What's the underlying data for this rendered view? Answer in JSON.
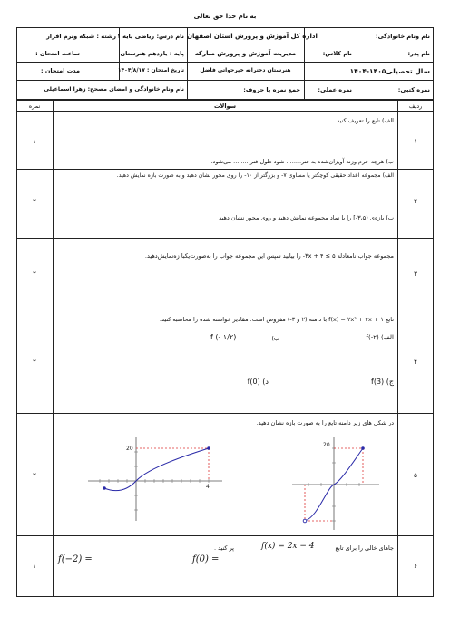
{
  "basmala": "به نام خدا حق تعالی",
  "header": {
    "col_right": {
      "name_label": "نام ونام خانوادگی:",
      "father_label": "نام پدر:",
      "year": "سال تحصیلی۱۴۰۵-۱۴۰۴",
      "grade_label": "نمره کتبی:"
    },
    "col_class": {
      "class_label": "نام کلاس:",
      "practical_label": "نمره عملی:"
    },
    "col_center": {
      "line1": "اداره کل آموزش و پرورش استان اصفهان",
      "line2": "مدیریت آموزش و پرورش مبارکه",
      "line3": "هنرستان دخترانه خیرحواتی فاضل",
      "total_label": "جمع نمره با حروف:"
    },
    "col_course": {
      "lesson": "نام درس: ریاضی پایه ۱",
      "level": "پایه : یازدهم هنرستان",
      "date": "تاریخ امتحان : ۱۴۰۴/۸/۱۷",
      "teacher": "نام ونام خانوادگی و امضای مصحح: زهرا اسماعیلی"
    },
    "col_left": {
      "field": "رشته : شبکه ونرم افزار",
      "time_label": "ساعت امتحان :",
      "duration_label": "مدت امتحان :"
    }
  },
  "table": {
    "col_row": "ردیف",
    "col_questions": "سوالات",
    "col_score": "نمره"
  },
  "questions": [
    {
      "num": "۱",
      "score": "۱",
      "a": "الف) تابع را تعریف کنید.",
      "b": "ب) هرچه جرم وزنه آویزان‌شده به فنر........ شود طول فنر......... می‌شود."
    },
    {
      "num": "۲",
      "score": "۲",
      "a": "الف) مجموعه اعداد حقیقی کوچکتر یا مساوی ۷- و بزرگتر از ۱۰- را روی محور نشان دهید و به صورت بازه نمایش دهید.",
      "b": "ب) بازه‌ی (۳،۵-] را با نماد مجموعه نمایش دهید و روی محور نشان دهید"
    },
    {
      "num": "۳",
      "score": "۲",
      "a": "مجموعه جواب نامعادله ۵ ≥ ۳x + ۴- را بیابید سپس این مجموعه جواب را به‌صورت‌یکبا زه‌نمایش‌دهید."
    },
    {
      "num": "۴",
      "score": "۲",
      "a": "تابع f(x) = ۲x² + ۴x + ۱ با دامنه (۲ و ۳-) مفروض است. مقادیر خواسته شده را محاسبه کنید.",
      "p1": "الف) f(-۲)",
      "p2": "ب)",
      "p2expr": "f (- ۱/۲)",
      "p3": "ج) f(3)",
      "p4": "د) f(0)"
    },
    {
      "num": "۵",
      "score": "۲",
      "a": "در شکل های زیر دامنه تابع را به صورت بازه نشان دهید."
    },
    {
      "num": "۶",
      "score": "۱",
      "a": "جاهای خالی را برای تابع",
      "func": "f(x) = 2x − 4",
      "a2": "پر کنید .",
      "e1": "f(0) =",
      "e2": "f(−2) ="
    }
  ],
  "graph1": {
    "label_y": "20",
    "label_x": "4"
  },
  "graph2": {
    "label_top": "20"
  }
}
